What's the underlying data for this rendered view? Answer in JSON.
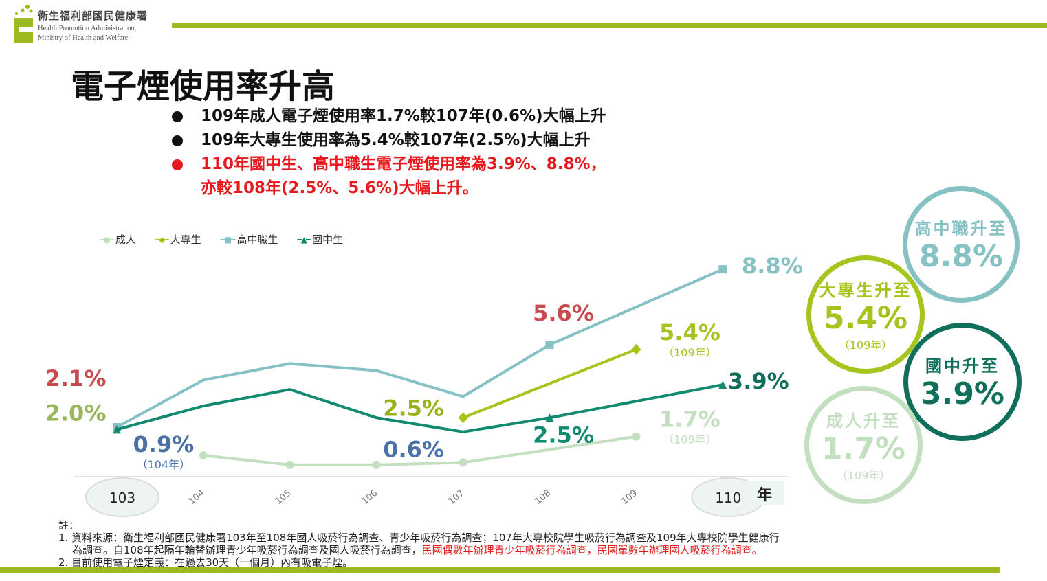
{
  "header": {
    "org_cn": "衛生福利部國民健康署",
    "org_en_1": "Health Promotion Administration,",
    "org_en_2": "Ministry of Health and Welfare"
  },
  "title": "電子煙使用率升高",
  "bullets": [
    {
      "text": "109年成人電子煙使用率1.7%較107年(0.6%)大幅上升",
      "color": "#111111"
    },
    {
      "text": "109年大專生使用率為5.4%較107年(2.5%)大幅上升",
      "color": "#111111"
    },
    {
      "text": "110年國中生、高中職生電子煙使用率為3.9%、8.8%，",
      "color": "#e8191e"
    },
    {
      "text": "亦較108年(2.5%、5.6%)大幅上升。",
      "color": "#e8191e"
    }
  ],
  "chart_data": {
    "type": "line",
    "x": [
      103,
      104,
      105,
      106,
      107,
      108,
      109,
      110
    ],
    "x_tick_labels": [
      "103",
      "104",
      "105",
      "106",
      "107",
      "108",
      "109",
      "110"
    ],
    "x_unit": "年",
    "ylim": [
      0,
      9
    ],
    "series": [
      {
        "name": "成人",
        "color": "#c2dfbf",
        "marker": "circle",
        "values": [
          null,
          0.9,
          0.5,
          0.5,
          0.6,
          null,
          1.7,
          null
        ]
      },
      {
        "name": "大專生",
        "color": "#a6c41e",
        "marker": "diamond",
        "values": [
          null,
          null,
          null,
          null,
          2.5,
          null,
          5.4,
          null
        ]
      },
      {
        "name": "高中職生",
        "color": "#86c1c3",
        "marker": "square",
        "values": [
          2.1,
          4.1,
          4.8,
          4.5,
          3.4,
          5.6,
          null,
          8.8
        ]
      },
      {
        "name": "國中生",
        "color": "#128a70",
        "marker": "triangle",
        "values": [
          2.0,
          3.0,
          3.7,
          2.5,
          1.9,
          2.5,
          null,
          3.9
        ]
      }
    ],
    "annotations": [
      {
        "text": "2.1%",
        "sub": "",
        "color": "#c84b50",
        "x": 103,
        "y": 2.1,
        "pos": "left-above"
      },
      {
        "text": "2.0%",
        "sub": "",
        "color": "#9ab65a",
        "x": 103,
        "y": 2.0,
        "pos": "left-below"
      },
      {
        "text": "0.9%",
        "sub": "（104年）",
        "color": "#4a72a8",
        "x": 104,
        "y": 0.9,
        "pos": "above"
      },
      {
        "text": "0.6%",
        "sub": "",
        "color": "#4a72a8",
        "x": 107,
        "y": 0.6,
        "pos": "left"
      },
      {
        "text": "2.5%",
        "sub": "",
        "color": "#9ab21a",
        "x": 107,
        "y": 2.5,
        "pos": "left"
      },
      {
        "text": "5.6%",
        "sub": "",
        "color": "#c84b50",
        "x": 108,
        "y": 5.6,
        "pos": "above"
      },
      {
        "text": "2.5%",
        "sub": "",
        "color": "#128a70",
        "x": 108,
        "y": 2.5,
        "pos": "below"
      },
      {
        "text": "5.4%",
        "sub": "（109年）",
        "color": "#a6c41e",
        "x": 109,
        "y": 5.4,
        "pos": "right"
      },
      {
        "text": "1.7%",
        "sub": "（109年）",
        "color": "#c2dfbf",
        "x": 109,
        "y": 1.7,
        "pos": "right"
      },
      {
        "text": "8.8%",
        "sub": "",
        "color": "#86c1c3",
        "x": 110,
        "y": 8.8,
        "pos": "right"
      },
      {
        "text": "3.9%",
        "sub": "",
        "color": "#0f6f5a",
        "x": 110,
        "y": 3.9,
        "pos": "right"
      }
    ]
  },
  "callouts": [
    {
      "label": "高中職升至",
      "value": "8.8%",
      "sub": "",
      "color": "#86c1c3"
    },
    {
      "label": "大專生升至",
      "value": "5.4%",
      "sub": "（109年）",
      "color": "#a6c41e"
    },
    {
      "label": "國中升至",
      "value": "3.9%",
      "sub": "",
      "color": "#0f6f5a"
    },
    {
      "label": "成人升至",
      "value": "1.7%",
      "sub": "（109年）",
      "color": "#c2dfbf"
    }
  ],
  "notes": {
    "heading": "註：",
    "line1": "1. 資料來源：衛生福利部國民健康署103年至108年國人吸菸行為調查、青少年吸菸行為調查；107年大專校院學生吸菸行為調查及109年大專校院學生健康行",
    "line2a": "為調查。自108年起隔年輪替辦理青少年吸菸行為調查及國人吸菸行為調查，",
    "line2b": "民國偶數年辦理青少年吸菸行為調查，民國單數年辦理國人吸菸行為調查。",
    "line3": "2. 目前使用電子煙定義：在過去30天（一個月）內有吸電子煙。"
  }
}
